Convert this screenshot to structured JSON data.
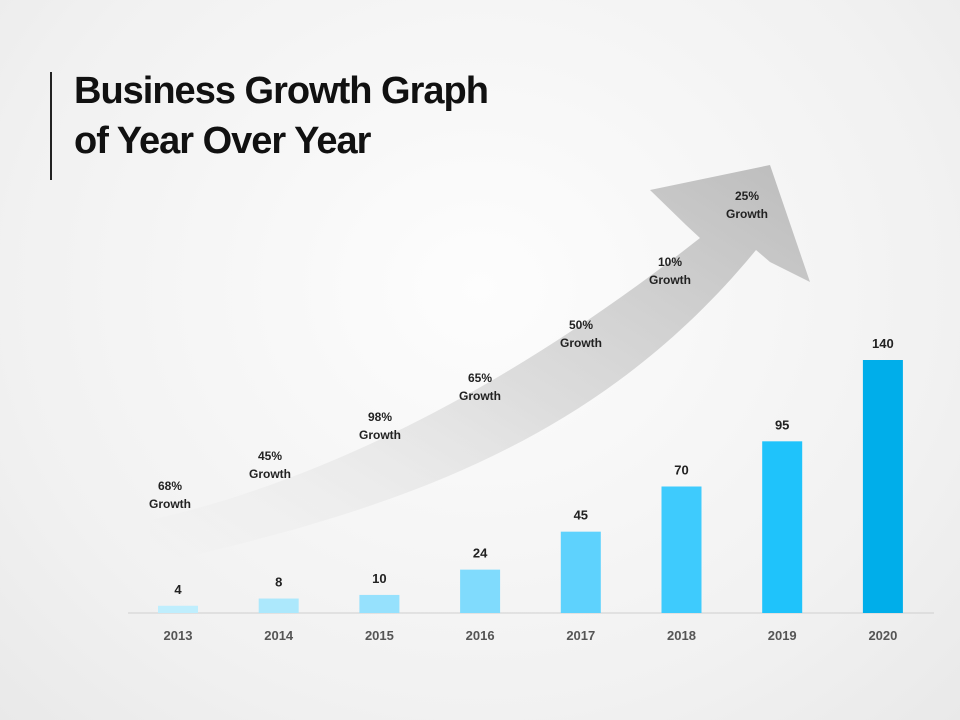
{
  "slide": {
    "title_line1": "Business Growth Graph",
    "title_line2": "of Year Over Year"
  },
  "chart_data": {
    "type": "bar",
    "categories": [
      "2013",
      "2014",
      "2015",
      "2016",
      "2017",
      "2018",
      "2019",
      "2020"
    ],
    "values": [
      4,
      8,
      10,
      24,
      45,
      70,
      95,
      140
    ],
    "bar_colors": [
      "#bfeefd",
      "#ace8fc",
      "#96e1fd",
      "#80dbfd",
      "#5ed2fd",
      "#3ecbfd",
      "#1fc3fb",
      "#00aeea"
    ],
    "growth_annotations": [
      {
        "line1": "68%",
        "line2": "Growth"
      },
      {
        "line1": "45%",
        "line2": "Growth"
      },
      {
        "line1": "98%",
        "line2": "Growth"
      },
      {
        "line1": "65%",
        "line2": "Growth"
      },
      {
        "line1": "50%",
        "line2": "Growth"
      },
      {
        "line1": "10%",
        "line2": "Growth"
      },
      {
        "line1": "25%",
        "line2": "Growth"
      }
    ],
    "title": "Business Growth Graph of Year Over Year",
    "xlabel": "",
    "ylabel": "",
    "ylim": [
      0,
      140
    ],
    "grid": false,
    "legend": "none",
    "trend_arrow": "upward curved gray arrow"
  }
}
